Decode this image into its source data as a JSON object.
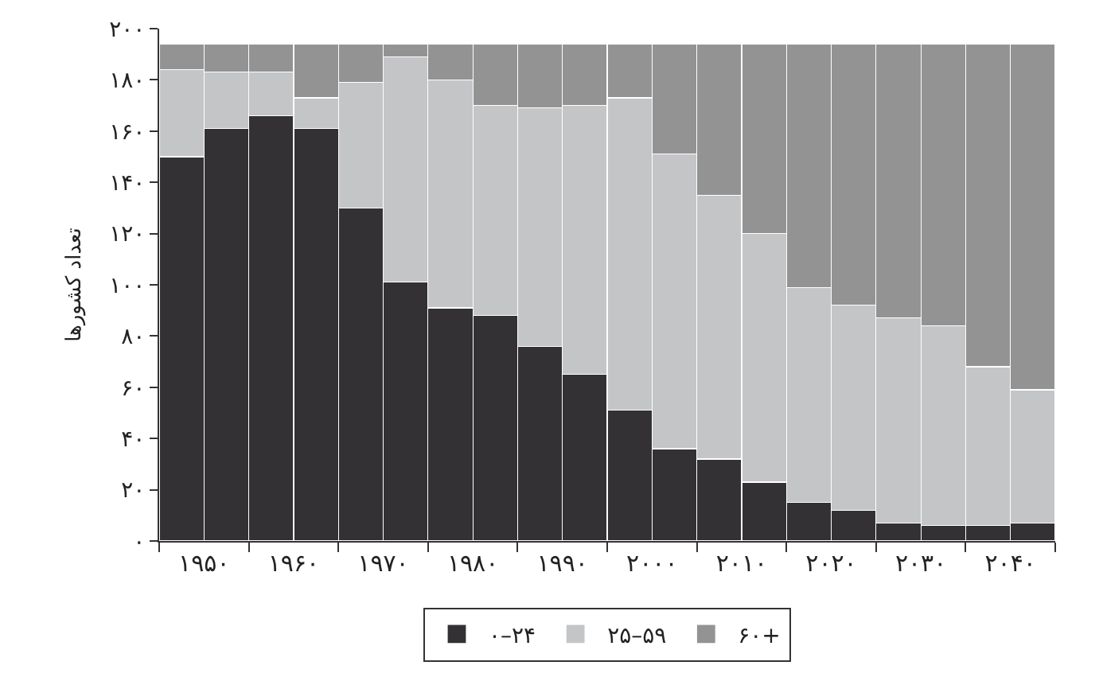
{
  "chart_data": {
    "type": "bar",
    "stacked": true,
    "ylabel": "تعداد کشورها",
    "categories": [
      "۱۹۵۰",
      null,
      "۱۹۶۰",
      null,
      "۱۹۷۰",
      null,
      "۱۹۸۰",
      null,
      "۱۹۹۰",
      null,
      "۲۰۰۰",
      null,
      "۲۰۱۰",
      null,
      "۲۰۲۰",
      null,
      "۲۰۳۰",
      null,
      "۲۰۴۰",
      null
    ],
    "series": [
      {
        "name": "۰–۲۴",
        "color": "#333133",
        "values": [
          150,
          161,
          166,
          161,
          130,
          101,
          91,
          88,
          76,
          65,
          51,
          36,
          32,
          23,
          15,
          12,
          7,
          6,
          6,
          7
        ]
      },
      {
        "name": "۲۵–۵۹",
        "color": "#c4c5c7",
        "values": [
          34,
          22,
          17,
          12,
          49,
          88,
          89,
          82,
          93,
          105,
          122,
          115,
          103,
          97,
          84,
          80,
          80,
          78,
          62,
          52
        ]
      },
      {
        "name": "۶۰+",
        "color": "#939393",
        "values": [
          10,
          11,
          11,
          21,
          15,
          5,
          14,
          24,
          25,
          24,
          21,
          43,
          59,
          74,
          95,
          102,
          107,
          110,
          126,
          135
        ]
      }
    ],
    "ylim": [
      0,
      200
    ],
    "yticks": [
      {
        "value": 0,
        "label": "۰"
      },
      {
        "value": 20,
        "label": "۲۰"
      },
      {
        "value": 40,
        "label": "۴۰"
      },
      {
        "value": 60,
        "label": "۶۰"
      },
      {
        "value": 80,
        "label": "۸۰"
      },
      {
        "value": 100,
        "label": "۱۰۰"
      },
      {
        "value": 120,
        "label": "۱۲۰"
      },
      {
        "value": 140,
        "label": "۱۴۰"
      },
      {
        "value": 160,
        "label": "۱۶۰"
      },
      {
        "value": 180,
        "label": "۱۸۰"
      },
      {
        "value": 200,
        "label": "۲۰۰"
      }
    ],
    "grid": false,
    "legend": "bottom"
  }
}
